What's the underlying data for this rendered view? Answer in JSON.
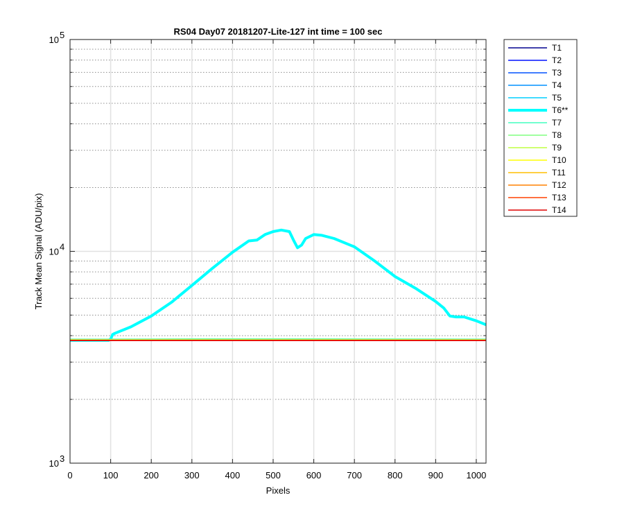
{
  "chart_data": {
    "type": "line",
    "title": "RS04 Day07 20181207-Lite-127 int time = 100 sec",
    "xlabel": "Pixels",
    "ylabel": "Track Mean Signal (ADU/pix)",
    "xlim": [
      0,
      1024
    ],
    "ylim": [
      1000,
      100000
    ],
    "yscale": "log",
    "grid": true,
    "minor_grid": true,
    "legend_position": "outside-top-right",
    "xticks": [
      0,
      100,
      200,
      300,
      400,
      500,
      600,
      700,
      800,
      900,
      1000
    ],
    "xtick_labels": [
      "0",
      "100",
      "200",
      "300",
      "400",
      "500",
      "600",
      "700",
      "800",
      "900",
      "1000"
    ],
    "yticks": [
      {
        "value": 1000,
        "base": "10",
        "exp": "3"
      },
      {
        "value": 10000,
        "base": "10",
        "exp": "4"
      },
      {
        "value": 100000,
        "base": "10",
        "exp": "5"
      }
    ],
    "series": [
      {
        "name": "T1",
        "color": "#00008F",
        "width": 1.5,
        "x": [
          0,
          1024
        ],
        "y": [
          3800,
          3800
        ]
      },
      {
        "name": "T2",
        "color": "#0010FF",
        "width": 1.5,
        "x": [
          0,
          1024
        ],
        "y": [
          3800,
          3800
        ]
      },
      {
        "name": "T3",
        "color": "#0050FF",
        "width": 1.5,
        "x": [
          0,
          1024
        ],
        "y": [
          3800,
          3800
        ]
      },
      {
        "name": "T4",
        "color": "#0090FF",
        "width": 1.5,
        "x": [
          0,
          1024
        ],
        "y": [
          3800,
          3800
        ]
      },
      {
        "name": "T5",
        "color": "#00CFFF",
        "width": 1.5,
        "x": [
          0,
          1024
        ],
        "y": [
          3800,
          3800
        ]
      },
      {
        "name": "T6**",
        "color": "#00FFFF",
        "width": 4,
        "x": [
          0,
          95,
          100,
          105,
          110,
          150,
          200,
          250,
          300,
          350,
          400,
          440,
          460,
          480,
          500,
          520,
          540,
          550,
          560,
          570,
          580,
          600,
          620,
          650,
          700,
          750,
          800,
          850,
          900,
          920,
          935,
          950,
          970,
          1000,
          1024
        ],
        "y": [
          3800,
          3800,
          3850,
          4050,
          4100,
          4400,
          4950,
          5750,
          6900,
          8300,
          9900,
          11200,
          11300,
          12000,
          12400,
          12600,
          12400,
          11300,
          10400,
          10700,
          11500,
          12000,
          11900,
          11500,
          10500,
          9000,
          7600,
          6700,
          5800,
          5400,
          4950,
          4900,
          4900,
          4700,
          4500
        ]
      },
      {
        "name": "T7",
        "color": "#40FFBF",
        "width": 1.5,
        "x": [
          0,
          100,
          300,
          600,
          1024
        ],
        "y": [
          3850,
          3850,
          3860,
          3860,
          3850
        ]
      },
      {
        "name": "T8",
        "color": "#80FF80",
        "width": 1.5,
        "x": [
          0,
          100,
          300,
          600,
          1024
        ],
        "y": [
          3840,
          3840,
          3850,
          3850,
          3840
        ]
      },
      {
        "name": "T9",
        "color": "#BFFF40",
        "width": 1.5,
        "x": [
          0,
          1024
        ],
        "y": [
          3820,
          3820
        ]
      },
      {
        "name": "T10",
        "color": "#FFFF00",
        "width": 1.5,
        "x": [
          0,
          1024
        ],
        "y": [
          3810,
          3810
        ]
      },
      {
        "name": "T11",
        "color": "#FFBF00",
        "width": 1.5,
        "x": [
          0,
          1024
        ],
        "y": [
          3805,
          3805
        ]
      },
      {
        "name": "T12",
        "color": "#FF8000",
        "width": 1.5,
        "x": [
          0,
          1024
        ],
        "y": [
          3800,
          3800
        ]
      },
      {
        "name": "T13",
        "color": "#FF4000",
        "width": 1.5,
        "x": [
          0,
          1024
        ],
        "y": [
          3800,
          3800
        ]
      },
      {
        "name": "T14",
        "color": "#DF0000",
        "width": 1.5,
        "x": [
          0,
          1024
        ],
        "y": [
          3790,
          3790
        ]
      }
    ]
  }
}
